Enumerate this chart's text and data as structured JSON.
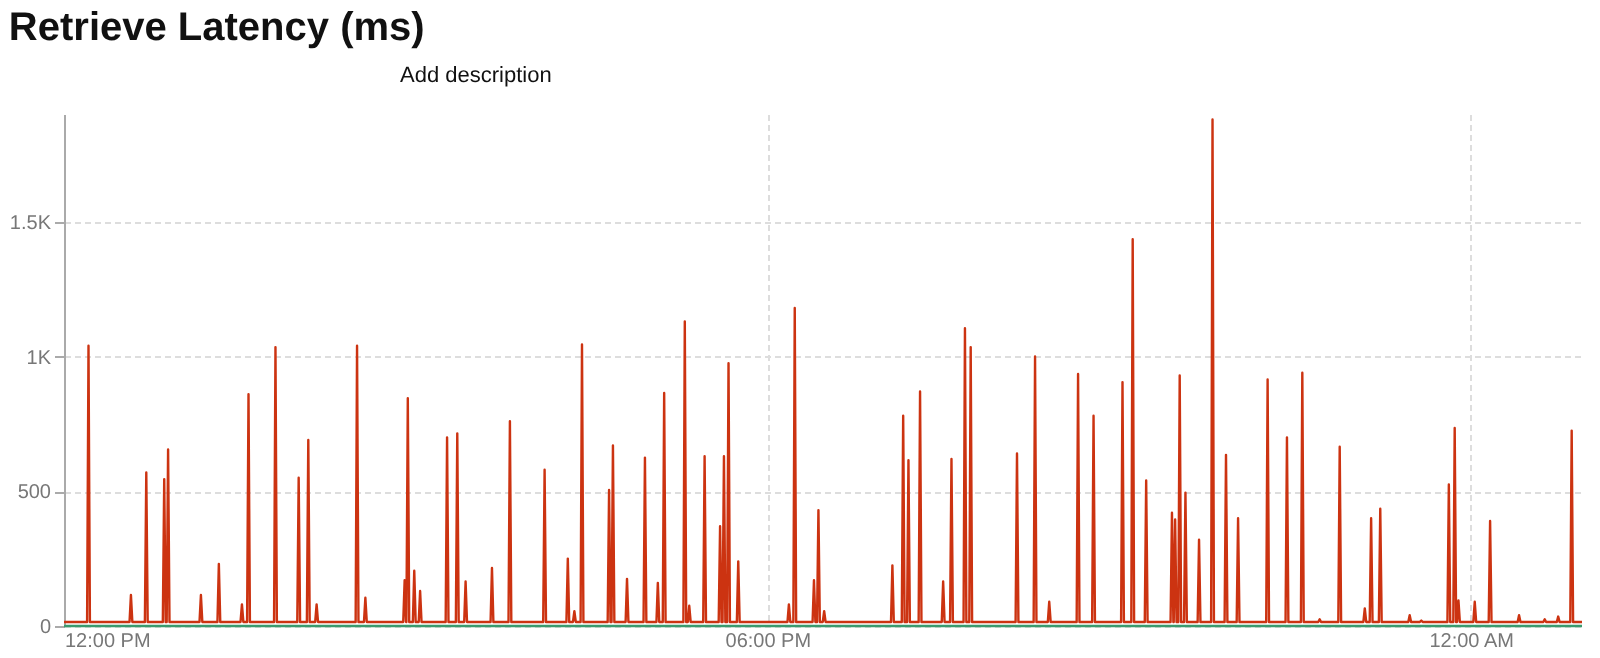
{
  "chart_data": {
    "type": "line",
    "title": "Retrieve Latency (ms)",
    "annotations": [
      "Add description"
    ],
    "xlim": [
      12,
      24.95
    ],
    "xticks": [
      {
        "value": 12,
        "label": "12:00 PM"
      },
      {
        "value": 18,
        "label": "06:00 PM"
      },
      {
        "value": 24,
        "label": "12:00 AM"
      }
    ],
    "ylim": [
      0,
      1900
    ],
    "yticks": [
      0,
      500,
      {
        "value": 1000,
        "label": "1K"
      },
      {
        "value": 1500,
        "label": "1.5K"
      }
    ],
    "grid": true,
    "legend": false,
    "series": [
      {
        "color": "#cc3311",
        "x": [
          12,
          12.197,
          12.209,
          12.221,
          12.559,
          12.571,
          12.583,
          12.69,
          12.702,
          12.714,
          12.843,
          12.855,
          12.867,
          12.876,
          12.888,
          12.9,
          13.156,
          13.168,
          13.18,
          13.309,
          13.321,
          13.333,
          13.506,
          13.518,
          13.53,
          13.562,
          13.574,
          13.586,
          13.792,
          13.804,
          13.816,
          13.99,
          14.002,
          14.014,
          14.072,
          14.084,
          14.096,
          14.143,
          14.155,
          14.167,
          14.488,
          14.5,
          14.512,
          14.559,
          14.571,
          14.583,
          14.894,
          14.906,
          14.918,
          14.921,
          14.933,
          14.945,
          14.976,
          14.988,
          15.0,
          15.026,
          15.038,
          15.05,
          15.256,
          15.268,
          15.28,
          15.343,
          15.355,
          15.367,
          15.414,
          15.426,
          15.438,
          15.639,
          15.651,
          15.663,
          15.792,
          15.804,
          15.816,
          16.088,
          16.1,
          16.112,
          16.286,
          16.298,
          16.31,
          16.342,
          16.354,
          16.366,
          16.407,
          16.419,
          16.431,
          16.638,
          16.65,
          16.662,
          16.671,
          16.683,
          16.695,
          16.791,
          16.803,
          16.815,
          16.944,
          16.956,
          16.968,
          17.054,
          17.066,
          17.078,
          17.108,
          17.12,
          17.132,
          17.284,
          17.296,
          17.308,
          17.322,
          17.334,
          17.346,
          17.453,
          17.465,
          17.477,
          17.585,
          17.597,
          17.609,
          17.618,
          17.63,
          17.642,
          17.657,
          17.669,
          17.681,
          17.74,
          17.752,
          17.764,
          18.172,
          18.184,
          18.196,
          18.222,
          18.234,
          18.246,
          18.386,
          18.398,
          18.41,
          18.424,
          18.436,
          18.448,
          18.473,
          18.485,
          18.497,
          19.055,
          19.067,
          19.079,
          19.147,
          19.159,
          19.171,
          19.192,
          19.204,
          19.216,
          19.291,
          19.303,
          19.315,
          19.488,
          19.5,
          19.512,
          19.559,
          19.571,
          19.583,
          19.674,
          19.686,
          19.698,
          19.723,
          19.735,
          19.747,
          20.118,
          20.13,
          20.142,
          20.272,
          20.284,
          20.296,
          20.393,
          20.405,
          20.417,
          20.639,
          20.651,
          20.663,
          20.771,
          20.783,
          20.795,
          21.018,
          21.03,
          21.042,
          21.105,
          21.117,
          21.129,
          21.22,
          21.232,
          21.244,
          21.44,
          21.452,
          21.464,
          21.467,
          21.479,
          21.491,
          21.506,
          21.518,
          21.53,
          21.555,
          21.567,
          21.579,
          21.671,
          21.683,
          21.695,
          21.786,
          21.798,
          21.81,
          21.901,
          21.913,
          21.925,
          22.004,
          22.016,
          22.028,
          22.256,
          22.268,
          22.28,
          22.421,
          22.433,
          22.445,
          22.552,
          22.564,
          22.576,
          22.7,
          22.712,
          22.724,
          22.871,
          22.883,
          22.895,
          23.085,
          23.097,
          23.109,
          23.139,
          23.151,
          23.163,
          23.217,
          23.229,
          23.241,
          23.468,
          23.48,
          23.492,
          23.567,
          23.579,
          23.591,
          23.802,
          23.814,
          23.826,
          23.852,
          23.864,
          23.876,
          23.884,
          23.896,
          23.908,
          24.023,
          24.035,
          24.047,
          24.154,
          24.166,
          24.178,
          24.401,
          24.413,
          24.425,
          24.62,
          24.632,
          24.644,
          24.735,
          24.747,
          24.759,
          24.85,
          24.862,
          24.874,
          24.95
        ],
        "values": [
          15,
          15,
          1040,
          15,
          15,
          115,
          15,
          15,
          570,
          15,
          15,
          545,
          15,
          15,
          655,
          15,
          15,
          115,
          15,
          15,
          230,
          15,
          15,
          80,
          15,
          15,
          860,
          15,
          15,
          1035,
          15,
          15,
          550,
          15,
          15,
          690,
          15,
          15,
          80,
          15,
          15,
          1040,
          15,
          15,
          105,
          15,
          15,
          170,
          15,
          15,
          845,
          15,
          15,
          205,
          15,
          15,
          130,
          15,
          15,
          700,
          15,
          15,
          715,
          15,
          15,
          165,
          15,
          15,
          215,
          15,
          15,
          760,
          15,
          15,
          580,
          15,
          15,
          250,
          15,
          15,
          55,
          15,
          15,
          1045,
          15,
          15,
          505,
          15,
          15,
          670,
          15,
          15,
          175,
          15,
          15,
          625,
          15,
          15,
          160,
          15,
          15,
          865,
          15,
          15,
          1130,
          15,
          15,
          75,
          15,
          15,
          630,
          15,
          15,
          370,
          15,
          15,
          630,
          15,
          15,
          975,
          15,
          15,
          240,
          15,
          15,
          80,
          15,
          15,
          1180,
          15,
          15,
          170,
          15,
          15,
          430,
          15,
          15,
          55,
          15,
          15,
          225,
          15,
          15,
          780,
          15,
          15,
          615,
          15,
          15,
          870,
          15,
          15,
          165,
          15,
          15,
          620,
          15,
          15,
          1105,
          15,
          15,
          1035,
          15,
          15,
          640,
          15,
          15,
          1000,
          15,
          15,
          90,
          15,
          15,
          935,
          15,
          15,
          780,
          15,
          15,
          905,
          15,
          15,
          1435,
          15,
          15,
          540,
          15,
          15,
          420,
          15,
          15,
          395,
          15,
          15,
          930,
          15,
          15,
          495,
          15,
          15,
          320,
          15,
          15,
          1880,
          15,
          15,
          635,
          15,
          15,
          400,
          15,
          15,
          915,
          15,
          15,
          700,
          15,
          15,
          940,
          15,
          15,
          25,
          15,
          15,
          665,
          15,
          15,
          65,
          15,
          15,
          400,
          15,
          15,
          435,
          15,
          15,
          40,
          15,
          15,
          20,
          15,
          15,
          525,
          15,
          15,
          735,
          15,
          15,
          95,
          15,
          15,
          90,
          15,
          15,
          390,
          15,
          15,
          40,
          15,
          15,
          25,
          15,
          15,
          35,
          15,
          15,
          725,
          15,
          15
        ]
      },
      {
        "color": "#3a9a6e",
        "x": [
          12,
          24.95
        ],
        "values": [
          0,
          0
        ]
      }
    ]
  }
}
